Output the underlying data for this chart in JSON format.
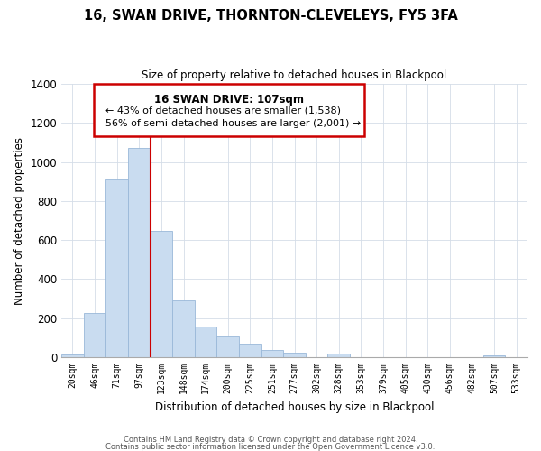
{
  "title": "16, SWAN DRIVE, THORNTON-CLEVELEYS, FY5 3FA",
  "subtitle": "Size of property relative to detached houses in Blackpool",
  "xlabel": "Distribution of detached houses by size in Blackpool",
  "ylabel": "Number of detached properties",
  "bar_labels": [
    "20sqm",
    "46sqm",
    "71sqm",
    "97sqm",
    "123sqm",
    "148sqm",
    "174sqm",
    "200sqm",
    "225sqm",
    "251sqm",
    "277sqm",
    "302sqm",
    "328sqm",
    "353sqm",
    "379sqm",
    "405sqm",
    "430sqm",
    "456sqm",
    "482sqm",
    "507sqm",
    "533sqm"
  ],
  "bar_values": [
    15,
    228,
    910,
    1070,
    645,
    290,
    158,
    108,
    70,
    38,
    22,
    0,
    18,
    0,
    0,
    0,
    0,
    0,
    0,
    10,
    0
  ],
  "bar_color": "#c9dcf0",
  "bar_edge_color": "#9ab8d8",
  "vline_color": "#cc0000",
  "vline_pos": 3.5,
  "ylim": [
    0,
    1400
  ],
  "yticks": [
    0,
    200,
    400,
    600,
    800,
    1000,
    1200,
    1400
  ],
  "annotation_title": "16 SWAN DRIVE: 107sqm",
  "annotation_line1": "← 43% of detached houses are smaller (1,538)",
  "annotation_line2": "56% of semi-detached houses are larger (2,001) →",
  "box_edge_color": "#cc0000",
  "box_face_color": "#ffffff",
  "footer1": "Contains HM Land Registry data © Crown copyright and database right 2024.",
  "footer2": "Contains public sector information licensed under the Open Government Licence v3.0."
}
